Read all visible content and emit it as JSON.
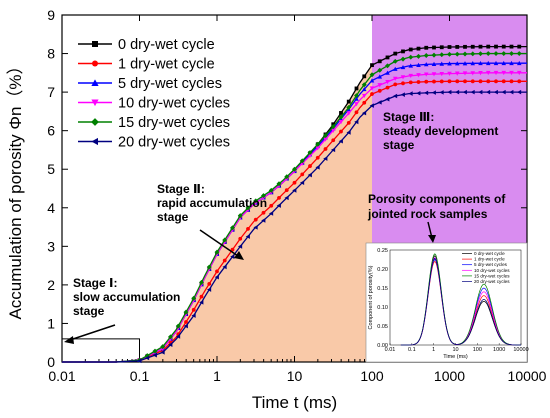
{
  "chart_data": {
    "type": "line",
    "xlabel": "Time t (ms)",
    "ylabel": "Accumulation of porosity Φn（%）",
    "x_scale": "log",
    "xlim": [
      0.01,
      10000
    ],
    "ylim": [
      0,
      9
    ],
    "x_ticks": [
      "0.01",
      "0.1",
      "1",
      "10",
      "100",
      "1000",
      "10000"
    ],
    "y_ticks": [
      "0",
      "1",
      "2",
      "3",
      "4",
      "5",
      "6",
      "7",
      "8",
      "9"
    ],
    "legend_position": "top-left",
    "series": [
      {
        "name": "0 dry-wet cycle",
        "color": "#000000",
        "marker": "square",
        "x": [
          0.01,
          0.05,
          0.1,
          0.2,
          0.3,
          0.5,
          0.7,
          1,
          2,
          3,
          5,
          7,
          10,
          20,
          30,
          50,
          70,
          100,
          200,
          300,
          500,
          1000,
          3000,
          10000
        ],
        "y": [
          0,
          0,
          0.05,
          0.35,
          0.8,
          1.6,
          2.2,
          2.8,
          3.75,
          4.1,
          4.4,
          4.65,
          4.95,
          5.65,
          6.1,
          6.75,
          7.25,
          7.7,
          8.0,
          8.1,
          8.15,
          8.17,
          8.18,
          8.18
        ]
      },
      {
        "name": "1 dry-wet cycle",
        "color": "#ff0000",
        "marker": "circle",
        "x": [
          0.01,
          0.05,
          0.1,
          0.2,
          0.3,
          0.5,
          0.7,
          1,
          2,
          3,
          5,
          7,
          10,
          20,
          30,
          50,
          70,
          100,
          200,
          300,
          500,
          1000,
          3000,
          10000
        ],
        "y": [
          0,
          0,
          0.05,
          0.3,
          0.65,
          1.35,
          1.85,
          2.35,
          3.2,
          3.65,
          4.05,
          4.35,
          4.65,
          5.3,
          5.7,
          6.2,
          6.6,
          6.95,
          7.2,
          7.25,
          7.27,
          7.28,
          7.28,
          7.28
        ]
      },
      {
        "name": "5 dry-wet cycles",
        "color": "#0000ff",
        "marker": "triangle-up",
        "x": [
          0.01,
          0.05,
          0.1,
          0.2,
          0.3,
          0.5,
          0.7,
          1,
          2,
          3,
          5,
          7,
          10,
          20,
          30,
          50,
          70,
          100,
          200,
          300,
          500,
          1000,
          3000,
          10000
        ],
        "y": [
          0,
          0,
          0.05,
          0.35,
          0.8,
          1.6,
          2.2,
          2.8,
          3.75,
          4.1,
          4.4,
          4.65,
          4.95,
          5.6,
          6.0,
          6.55,
          6.95,
          7.3,
          7.6,
          7.68,
          7.72,
          7.74,
          7.75,
          7.75
        ]
      },
      {
        "name": "10 dry-wet cycles",
        "color": "#ff00ff",
        "marker": "triangle-down",
        "x": [
          0.01,
          0.05,
          0.1,
          0.2,
          0.3,
          0.5,
          0.7,
          1,
          2,
          3,
          5,
          7,
          10,
          20,
          30,
          50,
          70,
          100,
          200,
          300,
          500,
          1000,
          3000,
          10000
        ],
        "y": [
          0,
          0,
          0.05,
          0.35,
          0.8,
          1.6,
          2.2,
          2.8,
          3.75,
          4.1,
          4.4,
          4.65,
          4.95,
          5.55,
          5.95,
          6.45,
          6.8,
          7.1,
          7.35,
          7.42,
          7.46,
          7.48,
          7.5,
          7.5
        ]
      },
      {
        "name": "15 dry-wet cycles",
        "color": "#008000",
        "marker": "diamond",
        "x": [
          0.01,
          0.05,
          0.1,
          0.2,
          0.3,
          0.5,
          0.7,
          1,
          2,
          3,
          5,
          7,
          10,
          20,
          30,
          50,
          70,
          100,
          200,
          300,
          500,
          1000,
          3000,
          10000
        ],
        "y": [
          0,
          0,
          0.05,
          0.4,
          0.85,
          1.65,
          2.25,
          2.85,
          3.8,
          4.15,
          4.45,
          4.7,
          5.0,
          5.65,
          6.05,
          6.6,
          7.05,
          7.45,
          7.8,
          7.9,
          7.95,
          7.98,
          8.0,
          8.0
        ]
      },
      {
        "name": "20 dry-wet cycles",
        "color": "#000080",
        "marker": "triangle-left",
        "x": [
          0.01,
          0.05,
          0.1,
          0.2,
          0.3,
          0.5,
          0.7,
          1,
          2,
          3,
          5,
          7,
          10,
          20,
          30,
          50,
          70,
          100,
          200,
          300,
          500,
          1000,
          3000,
          10000
        ],
        "y": [
          0,
          0,
          0.03,
          0.25,
          0.6,
          1.2,
          1.7,
          2.2,
          3.0,
          3.45,
          3.85,
          4.15,
          4.45,
          5.05,
          5.45,
          5.95,
          6.35,
          6.65,
          6.9,
          6.96,
          6.98,
          7.0,
          7.0,
          7.0
        ]
      }
    ],
    "stage_regions": [
      {
        "label_title": "Stage Ⅰ:",
        "label_lines": [
          "slow accumulation",
          "stage"
        ],
        "x_range": [
          0.01,
          0.1
        ],
        "y_top": 0.6,
        "style": "outline"
      },
      {
        "label_title": "Stage Ⅱ:",
        "label_lines": [
          "rapid accumulation",
          "stage"
        ],
        "x_range": [
          0.1,
          100
        ],
        "color": "#f9c9a8"
      },
      {
        "label_title": "Stage Ⅲ:",
        "label_lines": [
          "steady development",
          "stage"
        ],
        "x_range": [
          100,
          10000
        ],
        "color": "#d98cf0"
      }
    ],
    "annotations": [
      {
        "text_lines": [
          "Porosity components of",
          "jointed rock samples"
        ]
      }
    ],
    "inset": {
      "type": "line",
      "xlabel": "Time (ms)",
      "ylabel": "Component of porosity(%)",
      "x_scale": "log",
      "xlim": [
        0.01,
        10000
      ],
      "ylim": [
        0,
        0.25
      ],
      "x_ticks": [
        "0.01",
        "0.1",
        "1",
        "10",
        "100",
        "1000",
        "10000"
      ],
      "y_ticks": [
        "0.00",
        "0.05",
        "0.10",
        "0.15",
        "0.20",
        "0.25"
      ],
      "legend": [
        "0 dry-wet cycle",
        "1 dry-wet cycle",
        "5 dry-wet cycles",
        "10 dry-wet cycles",
        "15 dry-wet cycles",
        "20 dry-wet cycles"
      ],
      "series_peaks": [
        {
          "p1": 0.235,
          "p2": 0.115
        },
        {
          "p1": 0.22,
          "p2": 0.13
        },
        {
          "p1": 0.225,
          "p2": 0.15
        },
        {
          "p1": 0.23,
          "p2": 0.14
        },
        {
          "p1": 0.24,
          "p2": 0.16
        },
        {
          "p1": 0.228,
          "p2": 0.12
        }
      ]
    }
  }
}
